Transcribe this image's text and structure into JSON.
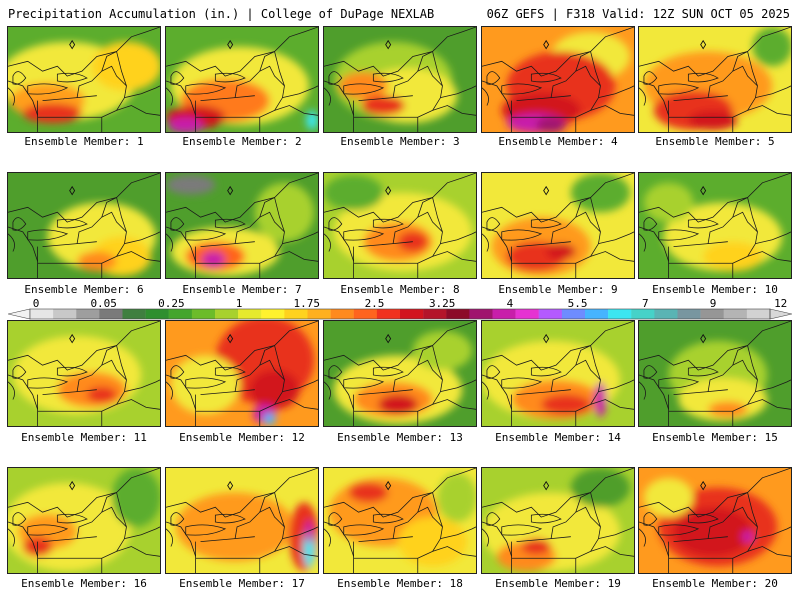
{
  "header": {
    "title_left": "Precipitation Accumulation (in.) | College of DuPage NEXLAB",
    "title_right": "06Z GEFS | F318 Valid: 12Z SUN OCT 05 2025"
  },
  "colorbar": {
    "labels": [
      "0",
      "0.05",
      "0.25",
      "1",
      "1.75",
      "2.5",
      "3.25",
      "4",
      "5.5",
      "7",
      "9",
      "12"
    ],
    "colors": [
      "#e6e6e6",
      "#c8c8c8",
      "#9e9e9e",
      "#7a7a7a",
      "#3f7f3f",
      "#2f8f2f",
      "#44a52c",
      "#6cbc2a",
      "#a8d12e",
      "#e6ea2e",
      "#fff22e",
      "#ffd21e",
      "#ffb01e",
      "#ff8a1e",
      "#ff641e",
      "#f0321e",
      "#d2141e",
      "#b4142a",
      "#8c0a28",
      "#a0146e",
      "#c81eaa",
      "#e632d2",
      "#b45aff",
      "#6e8cff",
      "#46b4ff",
      "#3ce6f0",
      "#46d2c8",
      "#5ab4b4",
      "#7896a0",
      "#969696",
      "#b4b4b4",
      "#d2d2d2"
    ]
  },
  "panels": [
    {
      "label": "Ensemble Member: 1",
      "base": "#5cad2d",
      "blobs": [
        [
          "#f2e83a",
          60,
          55,
          70,
          40
        ],
        [
          "#ff9f1e",
          40,
          75,
          38,
          18
        ],
        [
          "#e8321e",
          45,
          88,
          30,
          10
        ],
        [
          "#ffd21e",
          120,
          40,
          35,
          25
        ]
      ]
    },
    {
      "label": "Ensemble Member: 2",
      "base": "#5cad2d",
      "blobs": [
        [
          "#f2e83a",
          75,
          60,
          70,
          40
        ],
        [
          "#ff7a1e",
          60,
          75,
          45,
          22
        ],
        [
          "#d2141e",
          30,
          92,
          30,
          12
        ],
        [
          "#c81eaa",
          20,
          100,
          18,
          8
        ],
        [
          "#3ce6f0",
          148,
          95,
          6,
          10
        ]
      ]
    },
    {
      "label": "Ensemble Member: 3",
      "base": "#4f9e2c",
      "blobs": [
        [
          "#a8d12e",
          70,
          55,
          60,
          40
        ],
        [
          "#f2e83a",
          85,
          70,
          50,
          28
        ],
        [
          "#ff8a1e",
          40,
          60,
          25,
          14
        ],
        [
          "#e8321e",
          60,
          80,
          22,
          10
        ]
      ]
    },
    {
      "label": "Ensemble Member: 4",
      "base": "#ff9a1e",
      "blobs": [
        [
          "#f2e83a",
          110,
          30,
          40,
          25
        ],
        [
          "#e8321e",
          80,
          60,
          55,
          35
        ],
        [
          "#d2141e",
          60,
          85,
          40,
          18
        ],
        [
          "#c81eaa",
          55,
          98,
          30,
          10
        ],
        [
          "#a0146e",
          70,
          100,
          15,
          8
        ]
      ]
    },
    {
      "label": "Ensemble Member: 5",
      "base": "#f2e83a",
      "blobs": [
        [
          "#ff9a1e",
          70,
          60,
          65,
          35
        ],
        [
          "#e8321e",
          55,
          85,
          40,
          20
        ],
        [
          "#d2141e",
          75,
          95,
          25,
          10
        ],
        [
          "#5cad2d",
          135,
          20,
          20,
          20
        ]
      ]
    },
    {
      "label": "Ensemble Member: 6",
      "base": "#4f9e2c",
      "blobs": [
        [
          "#f2e83a",
          95,
          65,
          55,
          35
        ],
        [
          "#ffd21e",
          115,
          85,
          30,
          20
        ],
        [
          "#ff8a1e",
          90,
          90,
          20,
          10
        ]
      ]
    },
    {
      "label": "Ensemble Member: 7",
      "base": "#4f9e2c",
      "blobs": [
        [
          "#7a7a7a",
          25,
          12,
          25,
          10
        ],
        [
          "#f2e83a",
          60,
          80,
          55,
          25
        ],
        [
          "#ff641e",
          50,
          85,
          30,
          15
        ],
        [
          "#c81eaa",
          48,
          88,
          12,
          8
        ],
        [
          "#a8d12e",
          120,
          40,
          30,
          30
        ]
      ]
    },
    {
      "label": "Ensemble Member: 8",
      "base": "#a8d12e",
      "blobs": [
        [
          "#f2e83a",
          80,
          60,
          70,
          40
        ],
        [
          "#ff8a1e",
          75,
          70,
          35,
          20
        ],
        [
          "#e8321e",
          90,
          70,
          15,
          10
        ],
        [
          "#5cad2d",
          30,
          20,
          30,
          18
        ]
      ]
    },
    {
      "label": "Ensemble Member: 9",
      "base": "#f2e83a",
      "blobs": [
        [
          "#ff9a1e",
          60,
          75,
          50,
          30
        ],
        [
          "#e8321e",
          55,
          85,
          30,
          15
        ],
        [
          "#d2141e",
          80,
          80,
          15,
          8
        ],
        [
          "#5cad2d",
          120,
          20,
          30,
          20
        ]
      ]
    },
    {
      "label": "Ensemble Member: 10",
      "base": "#5cad2d",
      "blobs": [
        [
          "#f2e83a",
          85,
          65,
          60,
          35
        ],
        [
          "#ffd21e",
          95,
          85,
          30,
          15
        ],
        [
          "#a8d12e",
          30,
          30,
          25,
          20
        ]
      ]
    },
    {
      "label": "Ensemble Member: 11",
      "base": "#a8d12e",
      "blobs": [
        [
          "#f2e83a",
          70,
          55,
          65,
          40
        ],
        [
          "#ff8a1e",
          85,
          70,
          35,
          18
        ],
        [
          "#e8321e",
          95,
          75,
          15,
          8
        ]
      ]
    },
    {
      "label": "Ensemble Member: 12",
      "base": "#ff9a1e",
      "blobs": [
        [
          "#e8321e",
          100,
          40,
          50,
          45
        ],
        [
          "#f2e83a",
          40,
          65,
          35,
          30
        ],
        [
          "#d2141e",
          110,
          70,
          25,
          20
        ],
        [
          "#c81eaa",
          100,
          95,
          12,
          10
        ],
        [
          "#46b4ff",
          105,
          100,
          6,
          6
        ]
      ]
    },
    {
      "label": "Ensemble Member: 13",
      "base": "#4f9e2c",
      "blobs": [
        [
          "#f2e83a",
          75,
          70,
          65,
          35
        ],
        [
          "#ff8a1e",
          70,
          80,
          40,
          18
        ],
        [
          "#d2141e",
          75,
          85,
          20,
          10
        ],
        [
          "#a8d12e",
          120,
          30,
          30,
          20
        ]
      ]
    },
    {
      "label": "Ensemble Member: 14",
      "base": "#a8d12e",
      "blobs": [
        [
          "#f2e83a",
          70,
          60,
          70,
          40
        ],
        [
          "#ff8a1e",
          75,
          80,
          45,
          20
        ],
        [
          "#e8321e",
          85,
          85,
          25,
          10
        ],
        [
          "#c81eaa",
          120,
          80,
          6,
          18
        ]
      ]
    },
    {
      "label": "Ensemble Member: 15",
      "base": "#4f9e2c",
      "blobs": [
        [
          "#a8d12e",
          80,
          55,
          50,
          35
        ],
        [
          "#f2e83a",
          85,
          80,
          45,
          22
        ],
        [
          "#ff8a1e",
          90,
          90,
          20,
          8
        ]
      ]
    },
    {
      "label": "Ensemble Member: 16",
      "base": "#a8d12e",
      "blobs": [
        [
          "#f2e83a",
          60,
          60,
          65,
          45
        ],
        [
          "#ff9a1e",
          40,
          65,
          30,
          18
        ],
        [
          "#e8321e",
          30,
          80,
          15,
          10
        ],
        [
          "#5cad2d",
          130,
          30,
          25,
          30
        ]
      ]
    },
    {
      "label": "Ensemble Member: 17",
      "base": "#f2e83a",
      "blobs": [
        [
          "#ff9a1e",
          70,
          60,
          60,
          35
        ],
        [
          "#e8321e",
          140,
          70,
          15,
          35
        ],
        [
          "#3ce6f0",
          145,
          80,
          6,
          22
        ],
        [
          "#c81eaa",
          145,
          65,
          4,
          12
        ]
      ]
    },
    {
      "label": "Ensemble Member: 18",
      "base": "#f2e83a",
      "blobs": [
        [
          "#ff9a1e",
          60,
          45,
          55,
          35
        ],
        [
          "#e8321e",
          45,
          25,
          20,
          10
        ],
        [
          "#ffd21e",
          110,
          75,
          35,
          25
        ],
        [
          "#a8d12e",
          135,
          30,
          20,
          25
        ]
      ]
    },
    {
      "label": "Ensemble Member: 19",
      "base": "#a8d12e",
      "blobs": [
        [
          "#f2e83a",
          70,
          65,
          70,
          40
        ],
        [
          "#ff8a1e",
          45,
          90,
          30,
          15
        ],
        [
          "#e8321e",
          55,
          80,
          15,
          8
        ],
        [
          "#4f9e2c",
          120,
          20,
          30,
          20
        ]
      ]
    },
    {
      "label": "Ensemble Member: 20",
      "base": "#ff9a1e",
      "blobs": [
        [
          "#e8321e",
          80,
          60,
          60,
          40
        ],
        [
          "#d2141e",
          75,
          65,
          40,
          25
        ],
        [
          "#f2e83a",
          30,
          30,
          25,
          20
        ],
        [
          "#c81eaa",
          110,
          70,
          6,
          6
        ]
      ]
    }
  ]
}
